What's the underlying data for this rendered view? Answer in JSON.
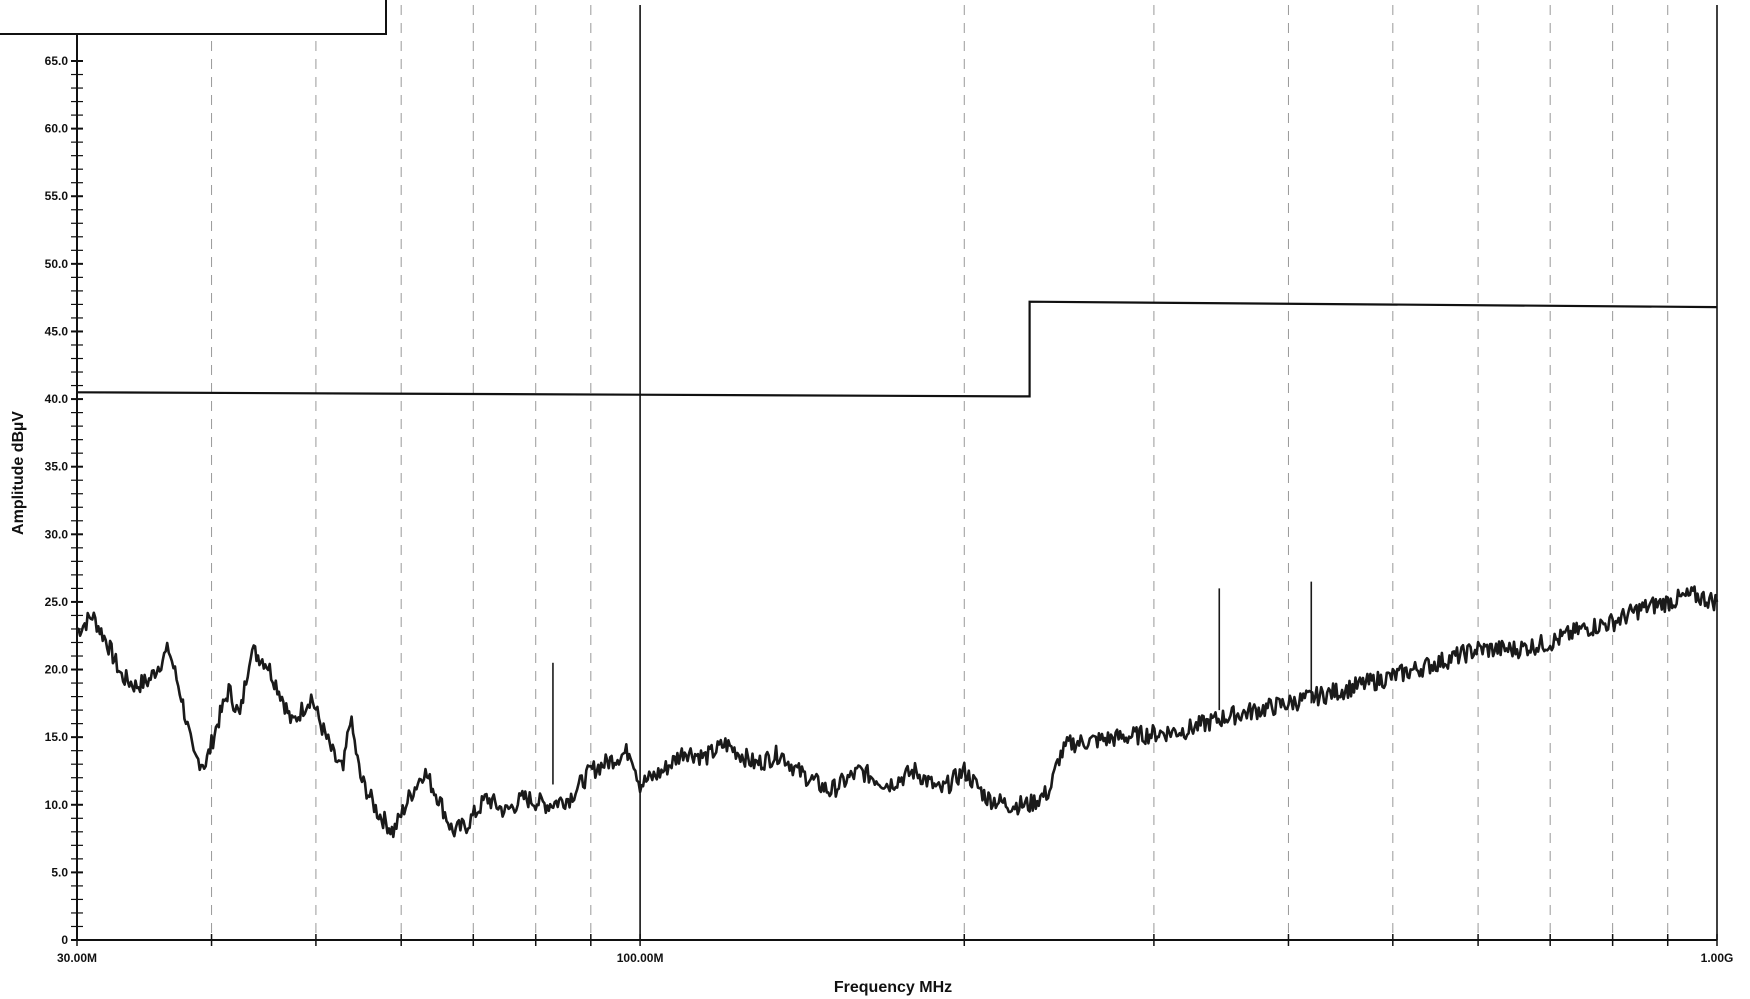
{
  "chart_data": {
    "type": "line",
    "xlabel": "Frequency MHz",
    "ylabel": "Amplitude dBµV",
    "x_scale": "log",
    "xlim": [
      30,
      1000
    ],
    "ylim": [
      0,
      65
    ],
    "y_ticks": [
      0,
      5,
      10,
      15,
      20,
      25,
      30,
      35,
      40,
      45,
      50,
      55,
      60,
      65
    ],
    "y_tick_labels": [
      "0",
      "5.0",
      "10.0",
      "15.0",
      "20.0",
      "25.0",
      "30.0",
      "35.0",
      "40.0",
      "45.0",
      "50.0",
      "55.0",
      "60.0",
      "65.0"
    ],
    "x_tick_labels": [
      {
        "x": 30,
        "label": "30.00M"
      },
      {
        "x": 100,
        "label": "100.00M"
      },
      {
        "x": 1000,
        "label": "1.00G"
      }
    ],
    "x_gridlines": [
      40,
      50,
      60,
      70,
      80,
      90,
      100,
      200,
      300,
      400,
      500,
      600,
      700,
      800,
      900,
      1000
    ],
    "grid": true,
    "legend": "top-left",
    "series": [
      {
        "style": "limit",
        "points": [
          [
            30,
            40.5
          ],
          [
            230,
            40.2
          ],
          [
            230,
            47.2
          ],
          [
            1000,
            46.8
          ]
        ]
      },
      {
        "style": "measurement",
        "points": [
          [
            30,
            22.8
          ],
          [
            31,
            24.0
          ],
          [
            32,
            22.0
          ],
          [
            33,
            19.5
          ],
          [
            34,
            18.8
          ],
          [
            35,
            19.2
          ],
          [
            36.5,
            21.5
          ],
          [
            37.5,
            18.0
          ],
          [
            38.5,
            13.5
          ],
          [
            39.5,
            13.0
          ],
          [
            40.5,
            16.0
          ],
          [
            41.5,
            18.5
          ],
          [
            42.5,
            16.5
          ],
          [
            43.5,
            21.5
          ],
          [
            45,
            20.5
          ],
          [
            46.5,
            18.0
          ],
          [
            47.5,
            16.0
          ],
          [
            48.5,
            17.0
          ],
          [
            49.5,
            18.0
          ],
          [
            50.5,
            16.0
          ],
          [
            52,
            13.5
          ],
          [
            53,
            12.5
          ],
          [
            53.8,
            16.5
          ],
          [
            55,
            12.0
          ],
          [
            57,
            9.5
          ],
          [
            59,
            8.0
          ],
          [
            61,
            10.5
          ],
          [
            63,
            12.5
          ],
          [
            65,
            10.5
          ],
          [
            67,
            8.0
          ],
          [
            69,
            8.5
          ],
          [
            72,
            10.5
          ],
          [
            75,
            9.5
          ],
          [
            78,
            10.5
          ],
          [
            82,
            10.0
          ],
          [
            86,
            10.5
          ],
          [
            90,
            12.5
          ],
          [
            95,
            13.5
          ],
          [
            98,
            14.0
          ],
          [
            100,
            11.5
          ],
          [
            105,
            12.5
          ],
          [
            110,
            14.0
          ],
          [
            115,
            13.5
          ],
          [
            120,
            14.5
          ],
          [
            128,
            13.0
          ],
          [
            135,
            13.8
          ],
          [
            140,
            12.5
          ],
          [
            150,
            11.0
          ],
          [
            160,
            12.5
          ],
          [
            170,
            11.5
          ],
          [
            180,
            12.5
          ],
          [
            190,
            11.0
          ],
          [
            200,
            12.5
          ],
          [
            210,
            10.5
          ],
          [
            220,
            10.0
          ],
          [
            230,
            10.0
          ],
          [
            240,
            11.0
          ],
          [
            245,
            13.5
          ],
          [
            250,
            14.5
          ],
          [
            280,
            15.0
          ],
          [
            320,
            15.5
          ],
          [
            350,
            16.5
          ],
          [
            400,
            17.5
          ],
          [
            450,
            18.5
          ],
          [
            500,
            19.5
          ],
          [
            550,
            20.5
          ],
          [
            600,
            21.5
          ],
          [
            650,
            21.5
          ],
          [
            700,
            22.0
          ],
          [
            750,
            23.0
          ],
          [
            800,
            23.5
          ],
          [
            850,
            24.5
          ],
          [
            900,
            25.0
          ],
          [
            950,
            25.5
          ],
          [
            1000,
            25.0
          ]
        ],
        "spikes": [
          [
            83,
            20.5
          ],
          [
            345,
            26.0
          ],
          [
            420,
            26.5
          ]
        ]
      }
    ]
  }
}
